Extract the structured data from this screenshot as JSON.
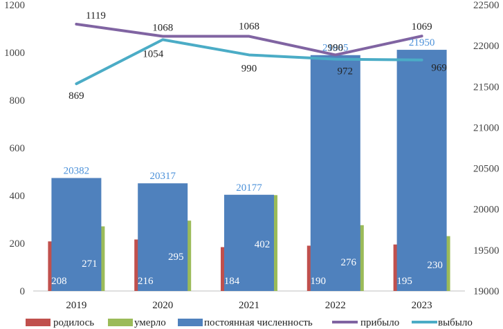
{
  "chart_data": {
    "type": "bar",
    "categories": [
      "2019",
      "2020",
      "2021",
      "2022",
      "2023"
    ],
    "left_axis": {
      "min": 0,
      "max": 1200,
      "step": 200,
      "ticks": [
        "0",
        "200",
        "400",
        "600",
        "800",
        "1000",
        "1200"
      ]
    },
    "right_axis": {
      "min": 19000,
      "max": 22500,
      "step": 500,
      "ticks": [
        "19000",
        "19500",
        "20000",
        "20500",
        "21000",
        "21500",
        "22000",
        "22500"
      ]
    },
    "series": [
      {
        "name": "родилось",
        "kind": "bar",
        "axis": "left",
        "color": "#c0504d",
        "values": [
          208,
          216,
          184,
          190,
          195
        ],
        "labels": [
          "208",
          "216",
          "184",
          "190",
          "195"
        ]
      },
      {
        "name": "умерло",
        "kind": "bar",
        "axis": "left",
        "color": "#9bbb59",
        "values": [
          271,
          295,
          402,
          276,
          230
        ],
        "labels": [
          "271",
          "295",
          "402",
          "276",
          "230"
        ]
      },
      {
        "name": "постоянная численность",
        "kind": "bar",
        "axis": "right",
        "color": "#4f81bd",
        "label_color": "#4a90d9",
        "values": [
          20382,
          20317,
          20177,
          21885,
          21950
        ],
        "labels": [
          "20382",
          "20317",
          "20177",
          "21885",
          "21950"
        ]
      },
      {
        "name": "прибыло",
        "kind": "line",
        "axis": "left",
        "color": "#8064a2",
        "values": [
          1119,
          1068,
          1068,
          990,
          1069
        ],
        "labels": [
          "1119",
          "1068",
          "1068",
          "990",
          "1069"
        ]
      },
      {
        "name": "выбыло",
        "kind": "line",
        "axis": "left",
        "color": "#4bacc6",
        "values": [
          869,
          1054,
          990,
          972,
          969
        ],
        "labels": [
          "869",
          "1054",
          "990",
          "972",
          "969"
        ]
      }
    ],
    "legend_position": "bottom"
  }
}
